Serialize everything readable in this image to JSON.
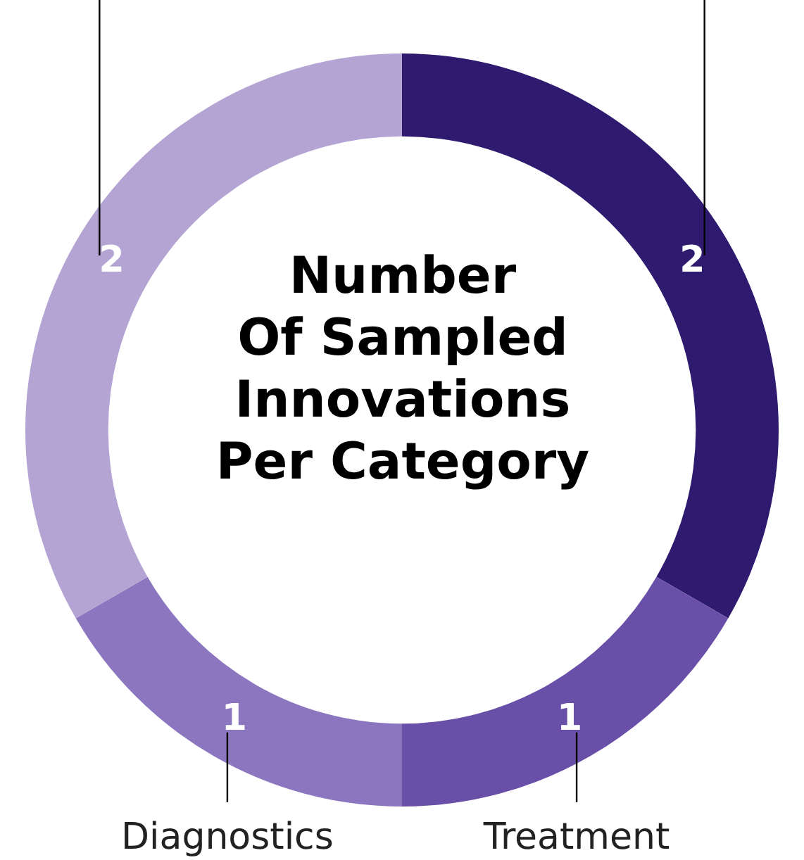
{
  "chart_data": {
    "type": "donut",
    "title": "Number\nOf Sampled\nInnovations\nPer Category",
    "categories": [
      null,
      "Treatment",
      "Diagnostics",
      null
    ],
    "values": [
      2,
      1,
      1,
      2
    ],
    "colors": [
      "#2e1a6e",
      "#6a4fa8",
      "#8c76c0",
      "#b3a4d4"
    ],
    "data_labels": true,
    "legend": false
  }
}
